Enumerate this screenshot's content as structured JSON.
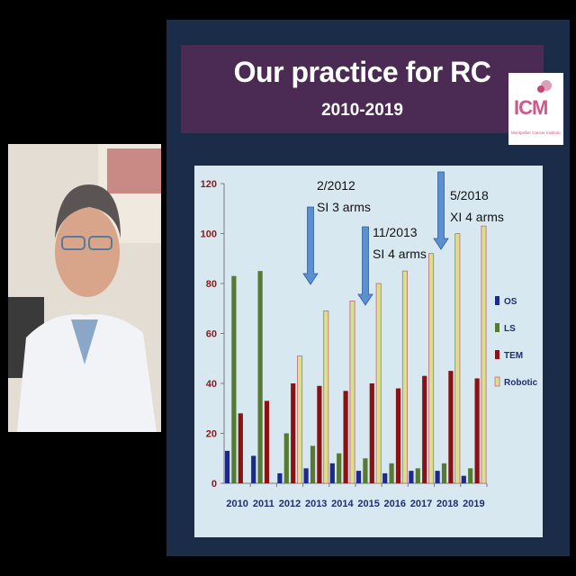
{
  "slide": {
    "title": "Our practice for RC",
    "subtitle": "2010-2019",
    "logo_text": "ICM",
    "logo_subtext": "Montpellier Cancer Institute"
  },
  "colors": {
    "slide_bg": "#1a2c47",
    "title_band": "#4b2b53",
    "chart_bg": "#d7e8f0",
    "axis_text": "#8b1a1a",
    "year_text": "#1f2f6e",
    "arrow": "#5b8fd2"
  },
  "chart_data": {
    "type": "bar",
    "categories": [
      "2010",
      "2011",
      "2012",
      "2013",
      "2014",
      "2015",
      "2016",
      "2017",
      "2018",
      "2019"
    ],
    "series": [
      {
        "name": "OS",
        "color": "#1c2a8c",
        "values": [
          13,
          11,
          4,
          6,
          8,
          5,
          4,
          5,
          5,
          3
        ]
      },
      {
        "name": "LS",
        "color": "#567a32",
        "values": [
          83,
          85,
          20,
          15,
          12,
          10,
          8,
          6,
          8,
          6
        ]
      },
      {
        "name": "TEM",
        "color": "#8b1212",
        "values": [
          28,
          33,
          40,
          39,
          37,
          40,
          38,
          43,
          45,
          42
        ]
      },
      {
        "name": "Robotic",
        "color": "#d9e08a",
        "values": [
          0,
          0,
          51,
          69,
          73,
          80,
          85,
          92,
          100,
          103
        ]
      }
    ],
    "ylim": [
      0,
      120
    ],
    "yticks": [
      0,
      20,
      40,
      60,
      80,
      100,
      120
    ],
    "legend_position": "right",
    "grid": false,
    "annotations": [
      {
        "line1": "2/2012",
        "line2": "SI 3 arms",
        "category": "2013"
      },
      {
        "line1": "11/2013",
        "line2": "SI 4 arms",
        "category": "2015"
      },
      {
        "line1": "5/2018",
        "line2": "XI 4 arms",
        "category": "2018"
      }
    ]
  }
}
